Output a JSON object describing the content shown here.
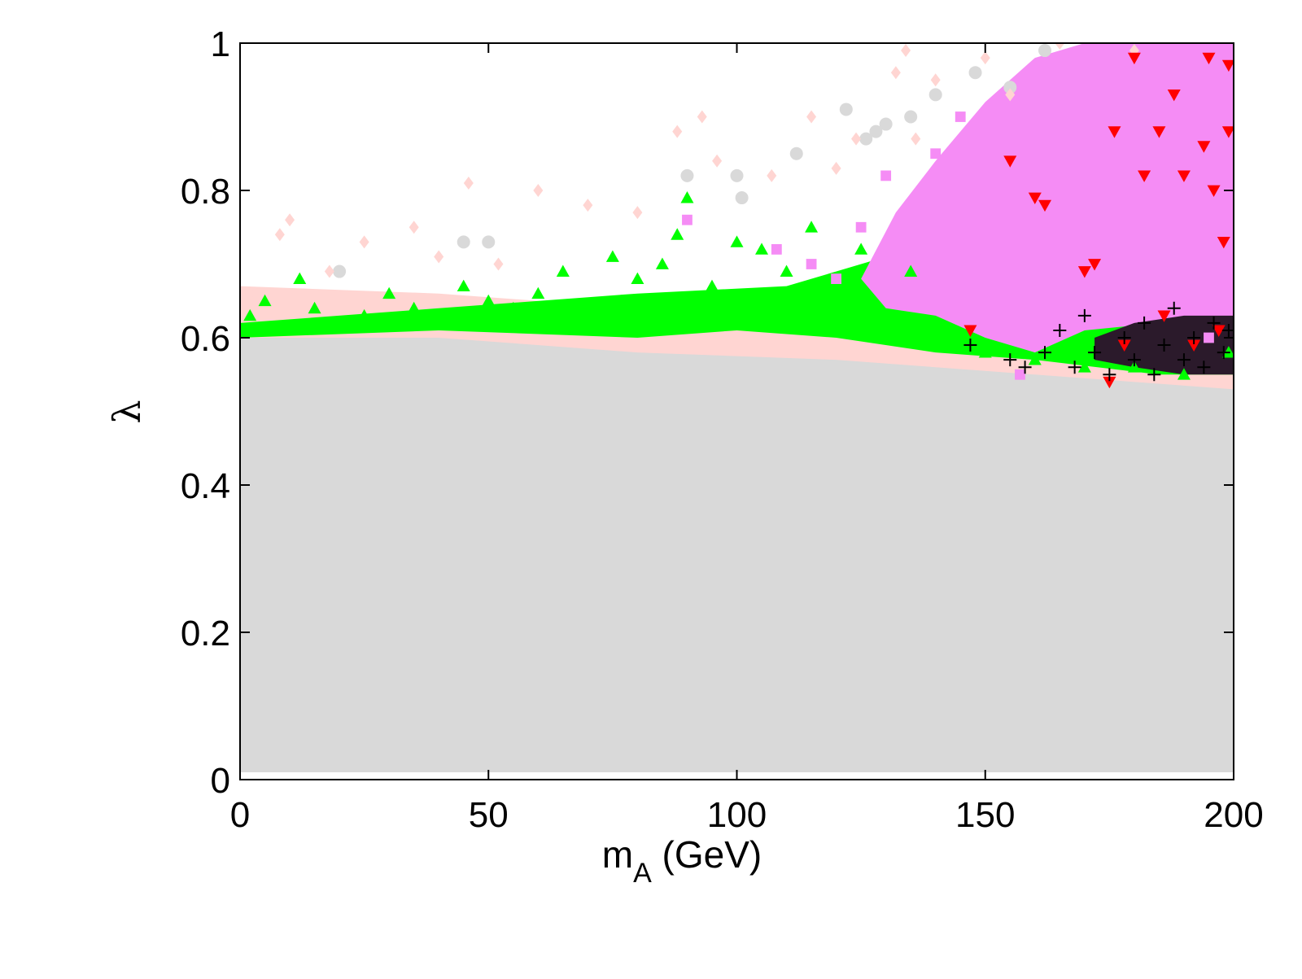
{
  "chart_data": {
    "type": "scatter",
    "title": "",
    "xlabel": "m",
    "xlabel_sub": "A",
    "xlabel_rest": " (GeV)",
    "ylabel": "λ",
    "xlim": [
      0,
      200
    ],
    "ylim": [
      0,
      1
    ],
    "xticks": [
      0,
      50,
      100,
      150,
      200
    ],
    "yticks": [
      0,
      0.2,
      0.4,
      0.6,
      0.8,
      1
    ],
    "xtick_labels": [
      "0",
      "50",
      "100",
      "150",
      "200"
    ],
    "ytick_labels": [
      "0",
      "0.2",
      "0.4",
      "0.6",
      "0.8",
      "1"
    ],
    "grid": false,
    "legend": "none",
    "series": [
      {
        "marker": "circle",
        "color": "#d9d9d9",
        "region_description_values": {
          "x_range": [
            0,
            200
          ],
          "y_range": [
            0.01,
            0.6
          ]
        },
        "points": [
          [
            20,
            0.69
          ],
          [
            45,
            0.73
          ],
          [
            50,
            0.73
          ],
          [
            90,
            0.82
          ],
          [
            100,
            0.82
          ],
          [
            101,
            0.79
          ],
          [
            112,
            0.85
          ],
          [
            122,
            0.91
          ],
          [
            126,
            0.87
          ],
          [
            128,
            0.88
          ],
          [
            130,
            0.89
          ],
          [
            135,
            0.9
          ],
          [
            140,
            0.93
          ],
          [
            148,
            0.96
          ],
          [
            155,
            0.94
          ],
          [
            162,
            0.99
          ]
        ]
      },
      {
        "marker": "diamond",
        "color": "#ffd5d2",
        "points": [
          [
            2,
            0.66
          ],
          [
            8,
            0.74
          ],
          [
            10,
            0.76
          ],
          [
            18,
            0.69
          ],
          [
            25,
            0.73
          ],
          [
            35,
            0.75
          ],
          [
            40,
            0.71
          ],
          [
            46,
            0.81
          ],
          [
            52,
            0.7
          ],
          [
            60,
            0.8
          ],
          [
            70,
            0.78
          ],
          [
            80,
            0.77
          ],
          [
            88,
            0.88
          ],
          [
            93,
            0.9
          ],
          [
            96,
            0.84
          ],
          [
            107,
            0.82
          ],
          [
            115,
            0.9
          ],
          [
            120,
            0.83
          ],
          [
            124,
            0.87
          ],
          [
            132,
            0.96
          ],
          [
            134,
            0.99
          ],
          [
            136,
            0.87
          ],
          [
            140,
            0.95
          ],
          [
            150,
            0.98
          ],
          [
            155,
            0.93
          ],
          [
            165,
            1.0
          ],
          [
            180,
            0.99
          ]
        ]
      },
      {
        "marker": "triangle-up",
        "color": "#00ff00",
        "points": [
          [
            2,
            0.63
          ],
          [
            5,
            0.65
          ],
          [
            8,
            0.61
          ],
          [
            12,
            0.68
          ],
          [
            15,
            0.64
          ],
          [
            20,
            0.62
          ],
          [
            25,
            0.63
          ],
          [
            30,
            0.66
          ],
          [
            35,
            0.64
          ],
          [
            40,
            0.62
          ],
          [
            45,
            0.67
          ],
          [
            50,
            0.65
          ],
          [
            55,
            0.64
          ],
          [
            60,
            0.66
          ],
          [
            65,
            0.69
          ],
          [
            70,
            0.63
          ],
          [
            75,
            0.71
          ],
          [
            80,
            0.68
          ],
          [
            85,
            0.7
          ],
          [
            88,
            0.74
          ],
          [
            90,
            0.79
          ],
          [
            95,
            0.67
          ],
          [
            100,
            0.73
          ],
          [
            105,
            0.72
          ],
          [
            110,
            0.69
          ],
          [
            115,
            0.75
          ],
          [
            120,
            0.66
          ],
          [
            125,
            0.72
          ],
          [
            130,
            0.62
          ],
          [
            135,
            0.69
          ],
          [
            140,
            0.6
          ],
          [
            150,
            0.58
          ],
          [
            160,
            0.57
          ],
          [
            170,
            0.56
          ],
          [
            180,
            0.56
          ],
          [
            190,
            0.55
          ],
          [
            199,
            0.58
          ]
        ]
      },
      {
        "marker": "square",
        "color": "#f58cf5",
        "points": [
          [
            90,
            0.76
          ],
          [
            108,
            0.72
          ],
          [
            115,
            0.7
          ],
          [
            120,
            0.68
          ],
          [
            125,
            0.75
          ],
          [
            130,
            0.82
          ],
          [
            135,
            0.78
          ],
          [
            140,
            0.85
          ],
          [
            145,
            0.9
          ],
          [
            150,
            0.72
          ],
          [
            155,
            0.8
          ],
          [
            160,
            0.95
          ],
          [
            165,
            0.88
          ],
          [
            170,
            0.65
          ],
          [
            175,
            0.99
          ],
          [
            180,
            0.7
          ],
          [
            185,
            0.85
          ],
          [
            190,
            0.93
          ],
          [
            195,
            0.6
          ],
          [
            199,
            0.75
          ],
          [
            157,
            0.55
          ],
          [
            162,
            0.62
          ]
        ]
      },
      {
        "marker": "triangle-down",
        "color": "#ff0000",
        "points": [
          [
            147,
            0.61
          ],
          [
            155,
            0.84
          ],
          [
            160,
            0.79
          ],
          [
            162,
            0.78
          ],
          [
            170,
            0.69
          ],
          [
            172,
            0.7
          ],
          [
            175,
            0.54
          ],
          [
            176,
            0.88
          ],
          [
            178,
            0.59
          ],
          [
            180,
            0.98
          ],
          [
            182,
            0.82
          ],
          [
            185,
            0.88
          ],
          [
            186,
            0.63
          ],
          [
            188,
            0.93
          ],
          [
            190,
            0.82
          ],
          [
            192,
            0.59
          ],
          [
            194,
            0.86
          ],
          [
            195,
            0.98
          ],
          [
            196,
            0.8
          ],
          [
            197,
            0.61
          ],
          [
            198,
            0.73
          ],
          [
            199,
            0.88
          ],
          [
            199,
            0.97
          ]
        ]
      },
      {
        "marker": "plus",
        "color": "#000000",
        "points": [
          [
            147,
            0.59
          ],
          [
            155,
            0.57
          ],
          [
            158,
            0.56
          ],
          [
            162,
            0.58
          ],
          [
            165,
            0.61
          ],
          [
            168,
            0.56
          ],
          [
            170,
            0.63
          ],
          [
            172,
            0.58
          ],
          [
            175,
            0.55
          ],
          [
            178,
            0.6
          ],
          [
            180,
            0.57
          ],
          [
            182,
            0.62
          ],
          [
            184,
            0.55
          ],
          [
            186,
            0.59
          ],
          [
            188,
            0.64
          ],
          [
            190,
            0.57
          ],
          [
            192,
            0.6
          ],
          [
            194,
            0.56
          ],
          [
            196,
            0.62
          ],
          [
            198,
            0.58
          ],
          [
            199,
            0.61
          ]
        ]
      }
    ]
  }
}
